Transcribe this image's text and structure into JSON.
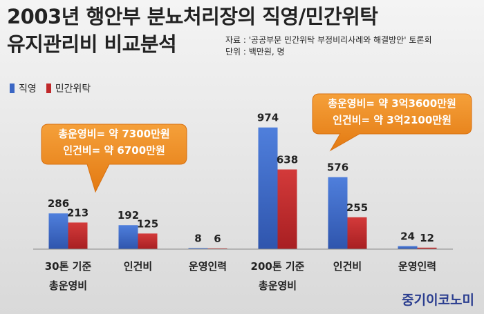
{
  "title_line1": "2003년 행안부 분뇨처리장의 직영/민간위탁",
  "title_line2": "유지관리비 비교분석",
  "source_line1": "자료 : '공공부문 민간위탁 부정비리사례와 해결방안' 토론회",
  "source_line2": "단위 : 백만원, 명",
  "callout_left": [
    "총운영비= 약 7300만원",
    "인건비= 약 6700만원"
  ],
  "callout_right": [
    "총운영비= 약 3억3600만원",
    "인건비= 약 3억2100만원"
  ],
  "watermark": "중기이코노미",
  "colors": {
    "direct": "#3a66c4",
    "outsourced": "#c0282a",
    "callout": "#f08a1c"
  },
  "chart_data": {
    "type": "bar",
    "categories": [
      "30톤 기준\n총운영비",
      "인건비",
      "운영인력",
      "200톤 기준\n총운영비",
      "인건비",
      "운영인력"
    ],
    "series": [
      {
        "name": "직영",
        "values": [
          286,
          192,
          8,
          974,
          576,
          24
        ]
      },
      {
        "name": "민간위탁",
        "values": [
          213,
          125,
          6,
          638,
          255,
          12
        ]
      }
    ],
    "ylim": [
      0,
      1000
    ],
    "legend": "top-left",
    "grid": false
  }
}
